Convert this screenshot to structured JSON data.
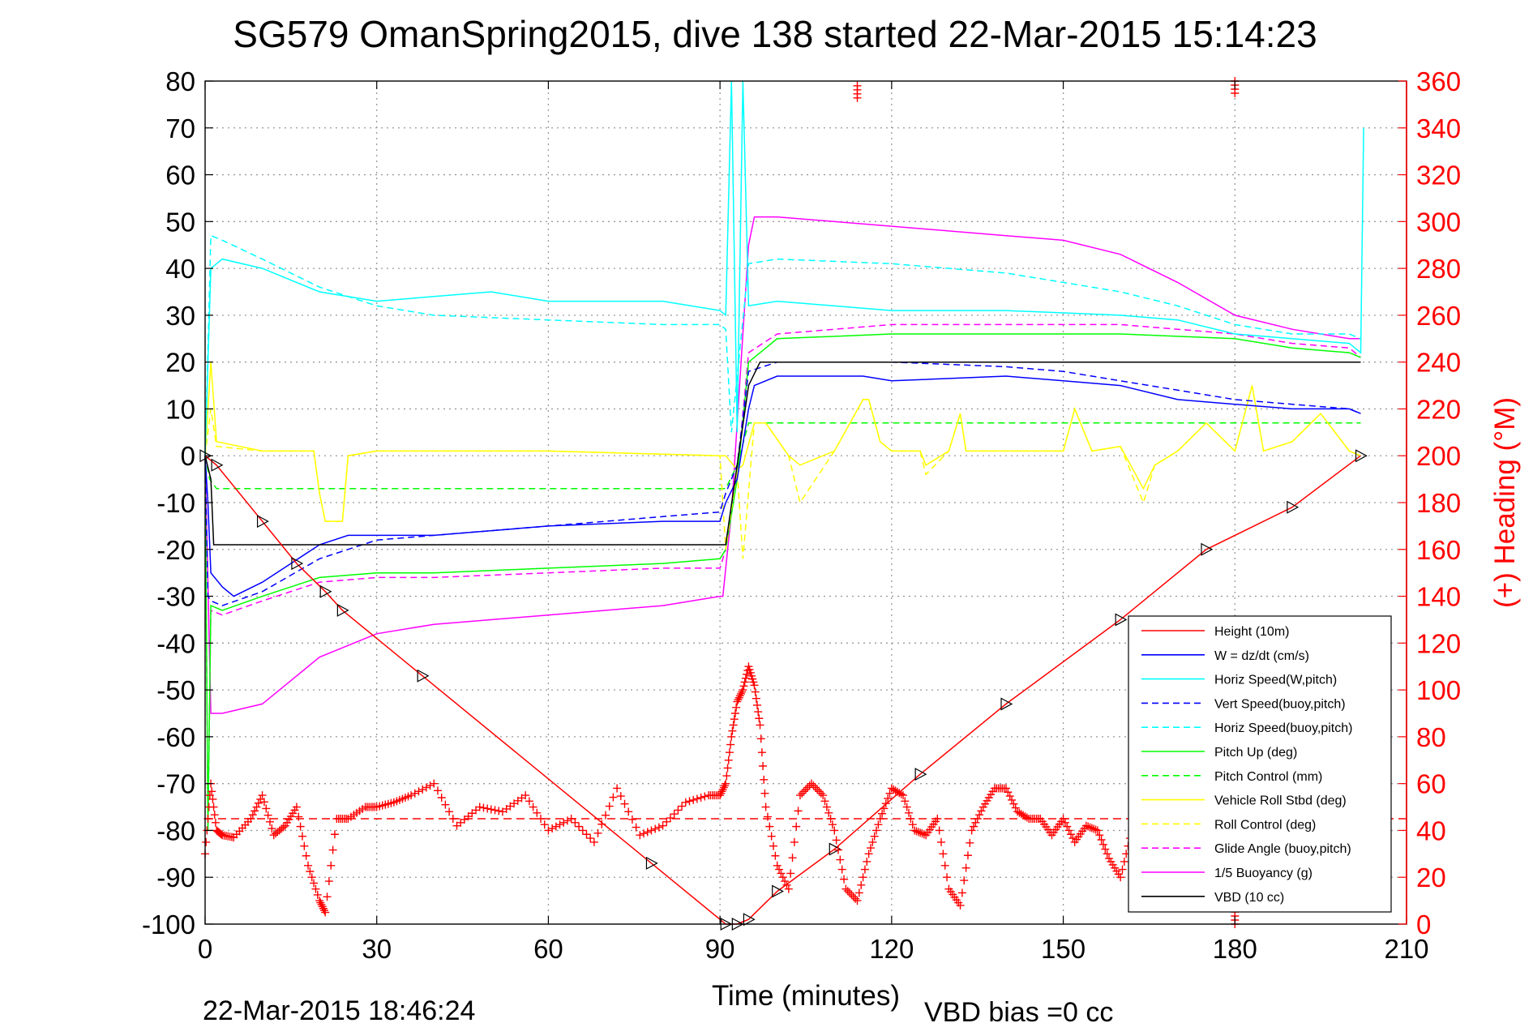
{
  "chart_data": {
    "type": "line",
    "title": "SG579 OmanSpring2015, dive 138 started 22-Mar-2015 15:14:23",
    "xlabel": "Time (minutes)",
    "y2label": "(+) Heading (°M)",
    "footer_left": "22-Mar-2015 18:46:24",
    "footer_right": "VBD bias =0 cc",
    "xlim": [
      0,
      210
    ],
    "ylim": [
      -100,
      80
    ],
    "y2lim": [
      0,
      360
    ],
    "xticks": [
      "0",
      "30",
      "60",
      "90",
      "120",
      "150",
      "180",
      "210"
    ],
    "yticks": [
      "80",
      "70",
      "60",
      "50",
      "40",
      "30",
      "20",
      "10",
      "0",
      "-10",
      "-20",
      "-30",
      "-40",
      "-50",
      "-60",
      "-70",
      "-80",
      "-90",
      "-100"
    ],
    "y2ticks": [
      "360",
      "340",
      "320",
      "300",
      "280",
      "260",
      "240",
      "220",
      "200",
      "180",
      "160",
      "140",
      "120",
      "100",
      "80",
      "60",
      "40",
      "20",
      "0"
    ],
    "grid": true,
    "legend_position": "bottom-right",
    "colors": {
      "height": "#ff0000",
      "w": "#0000ff",
      "horiz_speed": "#00ffff",
      "pitch": "#00ff00",
      "roll": "#ffff00",
      "glide": "#ff00ff",
      "buoyancy": "#ff00ff",
      "vbd": "#000000",
      "heading": "#ff0000",
      "right_axis": "#ff0000"
    },
    "legend": [
      "Height (10m)",
      "W = dz/dt (cm/s)",
      "Horiz Speed(W,pitch)",
      "Vert Speed(buoy,pitch)",
      "Horiz Speed(buoy,pitch)",
      "Pitch Up (deg)",
      "Pitch Control (mm)",
      "Vehicle Roll Stbd (deg)",
      "Roll Control (deg)",
      "Glide Angle (buoy,pitch)",
      "1/5 Buoyancy (g)",
      "VBD (10 cc)"
    ],
    "series": [
      {
        "name": "Height (10m)",
        "style": "solid",
        "markers": "triangles",
        "x": [
          0,
          2,
          10,
          16,
          21,
          24,
          38,
          78,
          91,
          93,
          95,
          100,
          110,
          125,
          140,
          160,
          175,
          190,
          202
        ],
        "y": [
          0,
          -2,
          -14,
          -23,
          -29,
          -33,
          -47,
          -87,
          -100,
          -100,
          -99,
          -93,
          -84,
          -68,
          -53,
          -35,
          -20,
          -11,
          0
        ]
      },
      {
        "name": "W = dz/dt (cm/s)",
        "style": "solid",
        "x": [
          0,
          0.5,
          1,
          3,
          5,
          10,
          15,
          20,
          25,
          30,
          40,
          60,
          80,
          90,
          91,
          93,
          95,
          96,
          100,
          110,
          115,
          120,
          140,
          150,
          160,
          170,
          180,
          190,
          200,
          202
        ],
        "y": [
          0,
          -10,
          -25,
          -28,
          -30,
          -27,
          -23,
          -19,
          -17,
          -17,
          -17,
          -15,
          -14,
          -14,
          -10,
          -5,
          10,
          15,
          17,
          17,
          17,
          16,
          17,
          16,
          15,
          12,
          11,
          10,
          10,
          9
        ]
      },
      {
        "name": "Horiz Speed(W,pitch)",
        "style": "solid",
        "x": [
          0,
          1,
          3,
          10,
          20,
          30,
          40,
          50,
          60,
          70,
          80,
          90,
          91,
          92,
          93,
          94,
          95,
          100,
          120,
          140,
          160,
          170,
          180,
          190,
          200,
          202,
          202.5
        ],
        "y": [
          0,
          40,
          42,
          40,
          35,
          33,
          34,
          35,
          33,
          33,
          33,
          31,
          30,
          80,
          5,
          80,
          32,
          33,
          31,
          31,
          30,
          29,
          26,
          25,
          24,
          22,
          70
        ]
      },
      {
        "name": "Vert Speed(buoy,pitch)",
        "style": "dashed",
        "x": [
          0,
          0.5,
          1,
          3,
          10,
          20,
          30,
          40,
          60,
          80,
          90,
          91,
          93,
          95,
          100,
          120,
          140,
          150,
          160,
          170,
          180,
          190,
          200,
          202
        ],
        "y": [
          0,
          -30,
          -31,
          -32,
          -29,
          -22,
          -18,
          -17,
          -15,
          -13,
          -12,
          -8,
          -2,
          18,
          20,
          20,
          19,
          18,
          16,
          14,
          12,
          11,
          10,
          9
        ]
      },
      {
        "name": "Horiz Speed(buoy,pitch)",
        "style": "dashed",
        "x": [
          0,
          1,
          3,
          10,
          20,
          30,
          40,
          60,
          80,
          90,
          91,
          92,
          95,
          100,
          120,
          140,
          150,
          160,
          170,
          180,
          190,
          200,
          202
        ],
        "y": [
          0,
          47,
          46,
          42,
          36,
          32,
          30,
          29,
          28,
          28,
          27,
          5,
          41,
          42,
          41,
          39,
          37,
          35,
          32,
          28,
          26,
          26,
          25
        ]
      },
      {
        "name": "Pitch Up (deg)",
        "style": "solid",
        "x": [
          0,
          0.5,
          1,
          3,
          10,
          20,
          30,
          40,
          60,
          80,
          90,
          91,
          93,
          95,
          100,
          120,
          140,
          160,
          180,
          190,
          200,
          202
        ],
        "y": [
          0,
          -80,
          -32,
          -33,
          -30,
          -26,
          -25,
          -25,
          -24,
          -23,
          -22,
          -20,
          -5,
          20,
          25,
          26,
          26,
          26,
          25,
          23,
          22,
          21
        ]
      },
      {
        "name": "Pitch Control (mm)",
        "style": "dashed",
        "x": [
          0,
          0.8,
          2,
          30,
          60,
          90,
          91,
          93,
          95,
          100,
          202
        ],
        "y": [
          0,
          -5,
          -7,
          -7,
          -7,
          -7,
          -7,
          -2,
          7,
          7,
          7
        ]
      },
      {
        "name": "Vehicle Roll Stbd (deg)",
        "style": "solid",
        "x": [
          0,
          1,
          2,
          10,
          19,
          20,
          21,
          24,
          25,
          30,
          60,
          90,
          91,
          93,
          94,
          96,
          98,
          102,
          104,
          110,
          115,
          116,
          118,
          120,
          125,
          126,
          130,
          132,
          133,
          140,
          150,
          152,
          155,
          160,
          164,
          166,
          170,
          175,
          180,
          183,
          185,
          190,
          195,
          200,
          202
        ],
        "y": [
          0,
          20,
          3,
          1,
          1,
          -8,
          -14,
          -14,
          0,
          1,
          1,
          0,
          0,
          -3,
          -2,
          7,
          7,
          0,
          -2,
          1,
          12,
          12,
          3,
          1,
          1,
          -2,
          1,
          9,
          1,
          1,
          1,
          10,
          1,
          2,
          -7,
          -2,
          1,
          7,
          1,
          15,
          1,
          3,
          9,
          1,
          0
        ]
      },
      {
        "name": "Roll Control (deg)",
        "style": "dashed",
        "x": [
          0,
          1,
          2,
          10,
          19,
          20,
          21,
          24,
          25,
          30,
          60,
          90,
          91,
          93,
          94,
          96,
          98,
          102,
          104,
          110,
          115,
          116,
          118,
          120,
          125,
          126,
          130,
          132,
          133,
          140,
          150,
          152,
          155,
          160,
          164,
          166,
          170,
          175,
          180,
          183,
          185,
          190,
          195,
          200,
          202
        ],
        "y": [
          0,
          10,
          2,
          1,
          1,
          -8,
          -14,
          -14,
          0,
          1,
          1,
          0,
          -20,
          -3,
          -22,
          7,
          7,
          0,
          -10,
          1,
          12,
          12,
          3,
          1,
          1,
          -4,
          1,
          9,
          1,
          1,
          1,
          10,
          1,
          2,
          -10,
          -2,
          1,
          7,
          1,
          15,
          1,
          3,
          9,
          1,
          0
        ]
      },
      {
        "name": "Glide Angle (buoy,pitch)",
        "style": "dashed",
        "x": [
          0,
          0.5,
          1,
          3,
          10,
          20,
          30,
          40,
          60,
          80,
          90,
          91,
          93,
          95,
          100,
          120,
          140,
          160,
          180,
          190,
          200,
          202
        ],
        "y": [
          0,
          -80,
          -33,
          -34,
          -31,
          -27,
          -26,
          -26,
          -25,
          -24,
          -24,
          -20,
          -4,
          22,
          26,
          28,
          28,
          28,
          26,
          24,
          23,
          21
        ]
      },
      {
        "name": "1/5 Buoyancy (g)",
        "style": "solid",
        "x": [
          0,
          1,
          3,
          10,
          15,
          20,
          30,
          40,
          60,
          80,
          90,
          90.5,
          92,
          95,
          96,
          100,
          120,
          140,
          150,
          160,
          170,
          180,
          190,
          200,
          202
        ],
        "y": [
          0,
          -55,
          -55,
          -53,
          -48,
          -43,
          -38,
          -36,
          -34,
          -32,
          -30,
          -30,
          -12,
          45,
          51,
          51,
          49,
          47,
          46,
          43,
          37,
          30,
          27,
          25,
          25
        ]
      },
      {
        "name": "VBD (10 cc)",
        "style": "solid",
        "x": [
          0,
          1,
          1.5,
          90,
          91,
          95,
          97,
          202
        ],
        "y": [
          0,
          -5,
          -19,
          -19,
          -19,
          15,
          20,
          20
        ]
      }
    ],
    "heading": {
      "name": "Heading",
      "axis": "right",
      "marker": "+",
      "mean": 45,
      "x": [
        0,
        1,
        2,
        3,
        5,
        8,
        10,
        12,
        14,
        16,
        18,
        20,
        21,
        23,
        25,
        28,
        30,
        33,
        36,
        40,
        44,
        48,
        52,
        56,
        60,
        64,
        68,
        72,
        76,
        80,
        84,
        88,
        90,
        91,
        92,
        93,
        94,
        95,
        96,
        97,
        98,
        100,
        102,
        104,
        106,
        108,
        110,
        112,
        114,
        116,
        118,
        120,
        122,
        124,
        126,
        128,
        130,
        132,
        134,
        136,
        138,
        140,
        142,
        144,
        146,
        148,
        150,
        152,
        154,
        156,
        158,
        160,
        162,
        164,
        166,
        168,
        170,
        172,
        174,
        176,
        178,
        180,
        182,
        184,
        186,
        188,
        190,
        192,
        194,
        196,
        198,
        200,
        202
      ],
      "y": [
        30,
        60,
        40,
        38,
        37,
        45,
        55,
        38,
        42,
        50,
        25,
        10,
        5,
        45,
        45,
        50,
        50,
        52,
        55,
        60,
        42,
        50,
        48,
        55,
        40,
        45,
        35,
        58,
        38,
        42,
        52,
        55,
        55,
        60,
        80,
        95,
        100,
        110,
        102,
        85,
        50,
        25,
        15,
        55,
        60,
        55,
        40,
        15,
        10,
        30,
        45,
        58,
        55,
        40,
        38,
        45,
        15,
        8,
        40,
        50,
        58,
        58,
        48,
        45,
        45,
        38,
        45,
        35,
        42,
        40,
        28,
        20,
        40,
        55,
        48,
        52,
        46,
        40,
        45,
        50,
        44,
        42,
        52,
        45,
        50,
        48,
        46,
        44,
        50,
        42,
        45,
        48,
        44
      ],
      "outliers": [
        {
          "x": 114,
          "y": 358
        },
        {
          "x": 180,
          "y": 360
        },
        {
          "x": 180,
          "y": 0
        }
      ]
    }
  }
}
